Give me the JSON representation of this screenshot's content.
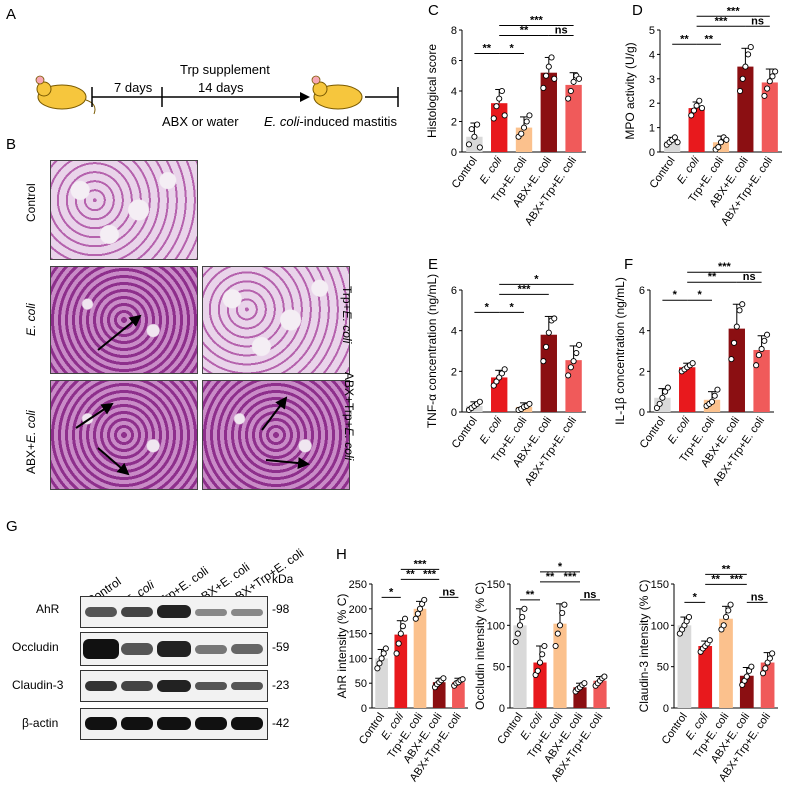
{
  "panels": {
    "A": "A",
    "B": "B",
    "C": "C",
    "D": "D",
    "E": "E",
    "F": "F",
    "G": "G",
    "H": "H"
  },
  "schematic": {
    "days7": "7 days",
    "supplement": "Trp supplement",
    "days14": "14 days",
    "abx": "ABX or water",
    "mastitis_ecoli": "E. coli",
    "mastitis_rest": "-induced mastitis"
  },
  "histology": {
    "control": "Control",
    "ecoli": "E. coli",
    "trp_prefix": "Trp+",
    "abx_prefix": "ABX+",
    "abxtrp_prefix": "ABX+Trp+",
    "ecoli_suffix": "E. coli"
  },
  "groups": [
    "Control",
    "E. coli",
    "Trp+E. coli",
    "ABX+E. coli",
    "ABX+Trp+E. coli"
  ],
  "colors": {
    "control": "#d9d9d9",
    "ecoli": "#e8191d",
    "trp": "#fbc18d",
    "abx": "#8b0f12",
    "abxtrp": "#f05a5a"
  },
  "significance": {
    "ns": "ns",
    "s1": "*",
    "s2": "**",
    "s3": "***"
  },
  "blot": {
    "kda_label": "kDa",
    "proteins": [
      {
        "name": "AhR",
        "kda": "-98"
      },
      {
        "name": "Occludin",
        "kda": "-59"
      },
      {
        "name": "Claudin-3",
        "kda": "-23"
      },
      {
        "name": "β-actin",
        "kda": "-42"
      }
    ],
    "lanes": [
      "Control",
      "E. coli",
      "Trp+E. coli",
      "ABX+E. coli",
      "ABX+Trp+E. coli"
    ]
  },
  "chart_data": [
    {
      "panel": "C",
      "type": "bar",
      "ylabel": "Histological score",
      "ylim": [
        0,
        8
      ],
      "yticks": [
        0,
        2,
        4,
        6,
        8
      ],
      "categories": [
        "Control",
        "E. coli",
        "Trp+E. coli",
        "ABX+E. coli",
        "ABX+Trp+E. coli"
      ],
      "values": [
        1.0,
        3.2,
        1.6,
        5.2,
        4.4
      ],
      "errors": [
        0.9,
        0.9,
        0.7,
        1.0,
        0.8
      ],
      "points": [
        [
          0.5,
          1.5,
          1.0,
          1.8,
          0.3
        ],
        [
          2.2,
          3.0,
          3.5,
          4.0,
          2.4
        ],
        [
          1.0,
          1.2,
          1.6,
          2.0,
          2.4
        ],
        [
          4.2,
          5.0,
          5.6,
          6.2,
          4.8
        ],
        [
          3.5,
          4.0,
          4.6,
          5.0,
          4.8
        ]
      ],
      "comparisons": [
        {
          "pair": [
            0,
            1
          ],
          "label": "**",
          "level": 1
        },
        {
          "pair": [
            1,
            2
          ],
          "label": "*",
          "level": 1
        },
        {
          "pair": [
            1,
            3
          ],
          "label": "**",
          "level": 2
        },
        {
          "pair": [
            3,
            4
          ],
          "label": "ns",
          "level": 2
        },
        {
          "pair": [
            1,
            4
          ],
          "label": "***",
          "level": 3
        }
      ]
    },
    {
      "panel": "D",
      "type": "bar",
      "ylabel": "MPO activity (U/g)",
      "ylim": [
        0,
        5
      ],
      "yticks": [
        0,
        1,
        2,
        3,
        4,
        5
      ],
      "categories": [
        "Control",
        "E. coli",
        "Trp+E. coli",
        "ABX+E. coli",
        "ABX+Trp+E. coli"
      ],
      "values": [
        0.45,
        1.8,
        0.4,
        3.5,
        2.85
      ],
      "errors": [
        0.15,
        0.25,
        0.25,
        0.75,
        0.55
      ],
      "points": [
        [
          0.3,
          0.4,
          0.5,
          0.6,
          0.4
        ],
        [
          1.5,
          1.7,
          1.9,
          2.1,
          1.8
        ],
        [
          0.1,
          0.2,
          0.4,
          0.6,
          0.5
        ],
        [
          2.5,
          3.0,
          3.5,
          4.0,
          4.3
        ],
        [
          2.3,
          2.6,
          2.9,
          3.1,
          3.3
        ]
      ],
      "comparisons": [
        {
          "pair": [
            0,
            1
          ],
          "label": "**",
          "level": 1
        },
        {
          "pair": [
            1,
            2
          ],
          "label": "**",
          "level": 1
        },
        {
          "pair": [
            1,
            3
          ],
          "label": "***",
          "level": 2
        },
        {
          "pair": [
            3,
            4
          ],
          "label": "ns",
          "level": 2
        },
        {
          "pair": [
            1,
            4
          ],
          "label": "***",
          "level": 3
        }
      ]
    },
    {
      "panel": "E",
      "type": "bar",
      "ylabel": "TNF-α concentration (ng/mL)",
      "ylim": [
        0,
        6
      ],
      "yticks": [
        0,
        2,
        4,
        6
      ],
      "categories": [
        "Control",
        "E. coli",
        "Trp+E. coli",
        "ABX+E. coli",
        "ABX+Trp+E. coli"
      ],
      "values": [
        0.3,
        1.7,
        0.25,
        3.8,
        2.55
      ],
      "errors": [
        0.2,
        0.35,
        0.2,
        0.9,
        0.7
      ],
      "points": [
        [
          0.1,
          0.2,
          0.3,
          0.4,
          0.5
        ],
        [
          1.3,
          1.5,
          1.7,
          1.9,
          2.1
        ],
        [
          0.1,
          0.15,
          0.25,
          0.3,
          0.4
        ],
        [
          2.5,
          3.2,
          3.9,
          4.5,
          4.6
        ],
        [
          1.8,
          2.2,
          2.5,
          2.9,
          3.3
        ]
      ],
      "comparisons": [
        {
          "pair": [
            0,
            1
          ],
          "label": "*",
          "level": 1
        },
        {
          "pair": [
            1,
            2
          ],
          "label": "*",
          "level": 1
        },
        {
          "pair": [
            1,
            3
          ],
          "label": "***",
          "level": 2
        },
        {
          "pair": [
            1,
            4
          ],
          "label": "*",
          "level": 3
        }
      ]
    },
    {
      "panel": "F",
      "type": "bar",
      "ylabel": "IL-1β concentration (ng/mL)",
      "ylim": [
        0,
        6
      ],
      "yticks": [
        0,
        2,
        4,
        6
      ],
      "categories": [
        "Control",
        "E. coli",
        "Trp+E. coli",
        "ABX+E. coli",
        "ABX+Trp+E. coli"
      ],
      "values": [
        0.7,
        2.2,
        0.6,
        4.1,
        3.05
      ],
      "errors": [
        0.45,
        0.2,
        0.4,
        1.2,
        0.7
      ],
      "points": [
        [
          0.2,
          0.4,
          0.7,
          1.0,
          1.2
        ],
        [
          2.0,
          2.1,
          2.2,
          2.3,
          2.4
        ],
        [
          0.3,
          0.4,
          0.5,
          0.8,
          1.1
        ],
        [
          2.6,
          3.4,
          4.2,
          5.0,
          5.3
        ],
        [
          2.3,
          2.8,
          3.1,
          3.5,
          3.8
        ]
      ],
      "comparisons": [
        {
          "pair": [
            0,
            1
          ],
          "label": "*",
          "level": 1
        },
        {
          "pair": [
            1,
            2
          ],
          "label": "*",
          "level": 1
        },
        {
          "pair": [
            1,
            3
          ],
          "label": "**",
          "level": 2
        },
        {
          "pair": [
            3,
            4
          ],
          "label": "ns",
          "level": 2
        },
        {
          "pair": [
            1,
            4
          ],
          "label": "***",
          "level": 3
        }
      ]
    },
    {
      "panel": "H1",
      "type": "bar",
      "ylabel": "AhR intensity (% C)",
      "ylim": [
        0,
        250
      ],
      "yticks": [
        0,
        50,
        100,
        150,
        200,
        250
      ],
      "categories": [
        "Control",
        "E. coli",
        "Trp+E. coli",
        "ABX+E. coli",
        "ABX+Trp+E. coli"
      ],
      "values": [
        100,
        148,
        200,
        52,
        52
      ],
      "errors": [
        18,
        28,
        15,
        8,
        8
      ],
      "points": [
        [
          80,
          90,
          100,
          110,
          120
        ],
        [
          110,
          130,
          150,
          165,
          180
        ],
        [
          180,
          190,
          200,
          210,
          218
        ],
        [
          42,
          48,
          52,
          56,
          60
        ],
        [
          45,
          50,
          52,
          56,
          58
        ]
      ],
      "comparisons": [
        {
          "pair": [
            0,
            1
          ],
          "label": "*",
          "level": 1
        },
        {
          "pair": [
            1,
            2
          ],
          "label": "**",
          "level": 2
        },
        {
          "pair": [
            3,
            4
          ],
          "label": "ns",
          "level": 1
        },
        {
          "pair": [
            1,
            3
          ],
          "label": "***",
          "level": 3
        },
        {
          "pair": [
            2,
            3
          ],
          "label": "***",
          "level": 2
        }
      ]
    },
    {
      "panel": "H2",
      "type": "bar",
      "ylabel": "Occludin intensity (% C)",
      "ylim": [
        0,
        150
      ],
      "yticks": [
        0,
        50,
        100,
        150
      ],
      "categories": [
        "Control",
        "E. coli",
        "Trp+E. coli",
        "ABX+E. coli",
        "ABX+Trp+E. coli"
      ],
      "values": [
        100,
        55,
        102,
        25,
        33
      ],
      "errors": [
        20,
        20,
        24,
        5,
        5
      ],
      "points": [
        [
          80,
          90,
          100,
          110,
          120
        ],
        [
          40,
          45,
          55,
          65,
          75
        ],
        [
          75,
          90,
          100,
          115,
          125
        ],
        [
          20,
          23,
          25,
          28,
          30
        ],
        [
          27,
          30,
          33,
          36,
          38
        ]
      ],
      "comparisons": [
        {
          "pair": [
            0,
            1
          ],
          "label": "**",
          "level": 1
        },
        {
          "pair": [
            1,
            2
          ],
          "label": "**",
          "level": 2
        },
        {
          "pair": [
            3,
            4
          ],
          "label": "ns",
          "level": 1
        },
        {
          "pair": [
            1,
            3
          ],
          "label": "*",
          "level": 3
        },
        {
          "pair": [
            2,
            3
          ],
          "label": "***",
          "level": 2
        }
      ]
    },
    {
      "panel": "H3",
      "type": "bar",
      "ylabel": "Claudin-3 intensity (% C)",
      "ylim": [
        0,
        150
      ],
      "yticks": [
        0,
        50,
        100,
        150
      ],
      "categories": [
        "Control",
        "E. coli",
        "Trp+E. coli",
        "ABX+E. coli",
        "ABX+Trp+E. coli"
      ],
      "values": [
        100,
        75,
        108,
        39,
        55
      ],
      "errors": [
        10,
        6,
        15,
        10,
        12
      ],
      "points": [
        [
          90,
          95,
          100,
          105,
          110
        ],
        [
          68,
          72,
          75,
          78,
          82
        ],
        [
          95,
          100,
          110,
          118,
          125
        ],
        [
          28,
          33,
          38,
          45,
          50
        ],
        [
          42,
          48,
          55,
          60,
          66
        ]
      ],
      "comparisons": [
        {
          "pair": [
            0,
            1
          ],
          "label": "*",
          "level": 1
        },
        {
          "pair": [
            1,
            2
          ],
          "label": "**",
          "level": 2
        },
        {
          "pair": [
            3,
            4
          ],
          "label": "ns",
          "level": 1
        },
        {
          "pair": [
            1,
            3
          ],
          "label": "**",
          "level": 3
        },
        {
          "pair": [
            2,
            3
          ],
          "label": "***",
          "level": 2
        }
      ]
    }
  ]
}
